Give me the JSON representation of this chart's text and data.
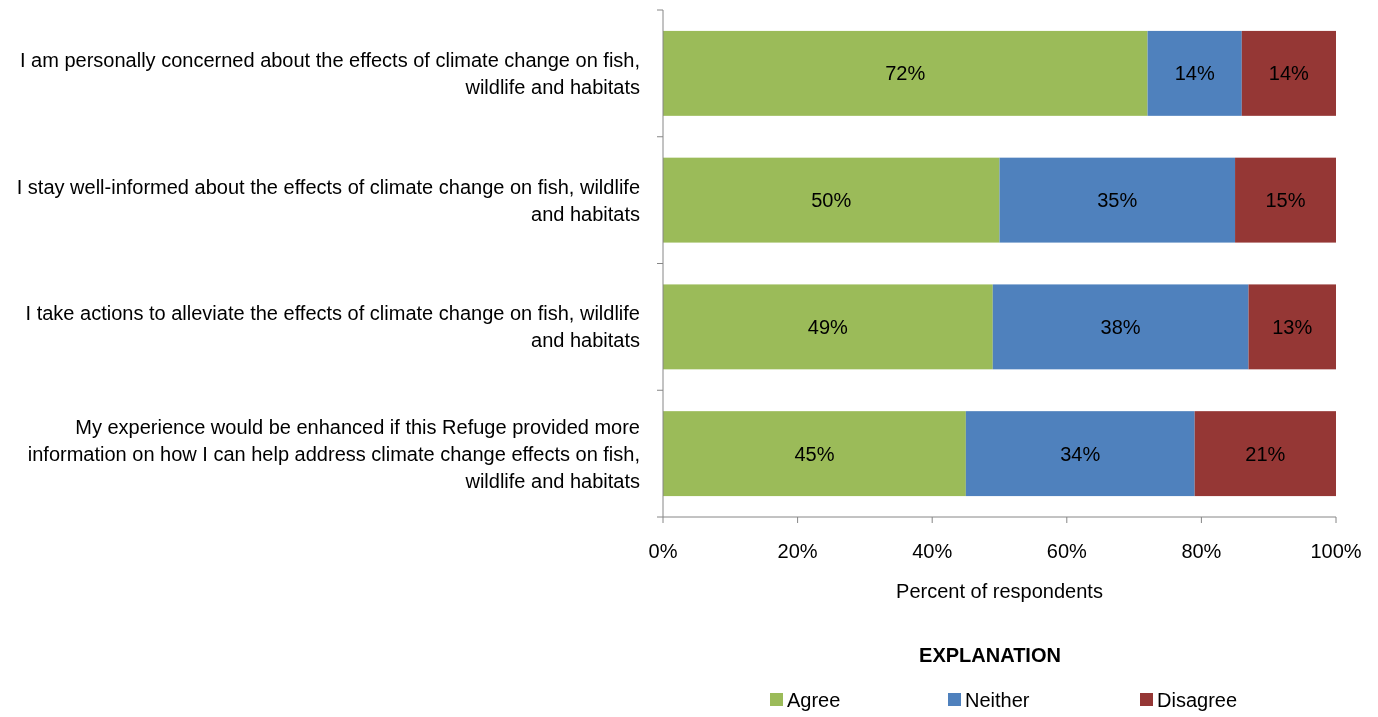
{
  "chart_data": {
    "type": "bar",
    "orientation": "horizontal",
    "stacked": true,
    "categories": [
      "I am personally concerned about the effects of climate change on fish, wildlife and habitats",
      "I stay well-informed about the effects of climate change on fish, wildlife and habitats",
      "I take actions to alleviate the effects of climate change on fish, wildlife and habitats",
      "My experience would be enhanced if this Refuge provided more information on how I can help address climate change effects on fish, wildlife and habitats"
    ],
    "series": [
      {
        "name": "Agree",
        "color": "#9bbb59",
        "values": [
          72,
          50,
          49,
          45
        ],
        "value_labels": [
          "72%",
          "50%",
          "49%",
          "45%"
        ]
      },
      {
        "name": "Neither",
        "color": "#4f81bd",
        "values": [
          14,
          35,
          38,
          34
        ],
        "value_labels": [
          "14%",
          "35%",
          "38%",
          "34%"
        ]
      },
      {
        "name": "Disagree",
        "color": "#953735",
        "values": [
          14,
          15,
          13,
          21
        ],
        "value_labels": [
          "14%",
          "15%",
          "13%",
          "21%"
        ]
      }
    ],
    "xlim": [
      0,
      100
    ],
    "xticks": [
      {
        "value": 0,
        "label": "0%"
      },
      {
        "value": 20,
        "label": "20%"
      },
      {
        "value": 40,
        "label": "40%"
      },
      {
        "value": 60,
        "label": "60%"
      },
      {
        "value": 80,
        "label": "80%"
      },
      {
        "value": 100,
        "label": "100%"
      }
    ],
    "xlabel": "Percent of respondents",
    "legend_title": "EXPLANATION",
    "legend": "bottom",
    "grid": false
  }
}
